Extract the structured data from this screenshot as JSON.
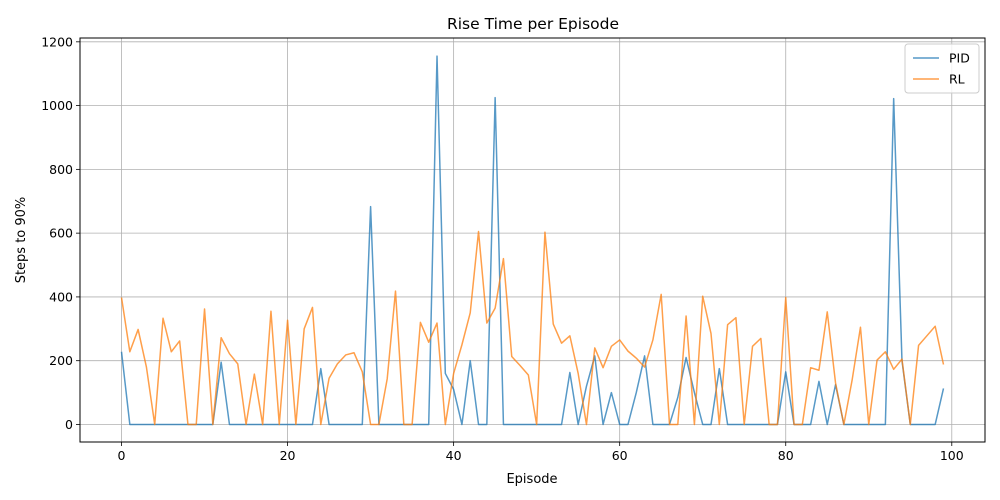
{
  "chart_data": {
    "type": "line",
    "title": "Rise Time per Episode",
    "xlabel": "Episode",
    "ylabel": "Steps to 90%",
    "xlim": [
      -5,
      104
    ],
    "ylim": [
      -55,
      1212
    ],
    "xticks": [
      0,
      20,
      40,
      60,
      80,
      100
    ],
    "yticks": [
      0,
      200,
      400,
      600,
      800,
      1000,
      1200
    ],
    "grid": true,
    "legend_position": "top-right",
    "series": [
      {
        "name": "PID",
        "color": "#1f77b4",
        "values": [
          228,
          0,
          0,
          0,
          0,
          0,
          0,
          0,
          0,
          0,
          0,
          0,
          195,
          0,
          0,
          0,
          0,
          0,
          0,
          0,
          0,
          0,
          0,
          0,
          175,
          0,
          0,
          0,
          0,
          0,
          683,
          0,
          0,
          0,
          0,
          0,
          0,
          0,
          1155,
          160,
          110,
          0,
          200,
          0,
          0,
          1025,
          0,
          0,
          0,
          0,
          0,
          0,
          0,
          0,
          163,
          0,
          120,
          215,
          0,
          100,
          0,
          0,
          100,
          215,
          0,
          0,
          0,
          85,
          210,
          100,
          0,
          0,
          175,
          0,
          0,
          0,
          0,
          0,
          0,
          0,
          165,
          0,
          0,
          0,
          135,
          0,
          125,
          0,
          0,
          0,
          0,
          0,
          0,
          1022,
          200,
          0,
          0,
          0,
          0,
          113
        ]
      },
      {
        "name": "RL",
        "color": "#ff7f0e",
        "values": [
          398,
          228,
          298,
          180,
          0,
          333,
          228,
          262,
          0,
          0,
          362,
          0,
          272,
          222,
          190,
          0,
          158,
          0,
          355,
          0,
          327,
          0,
          300,
          367,
          0,
          145,
          190,
          218,
          225,
          165,
          0,
          0,
          143,
          418,
          0,
          0,
          320,
          258,
          318,
          0,
          160,
          250,
          350,
          605,
          318,
          365,
          520,
          213,
          185,
          155,
          0,
          603,
          315,
          255,
          278,
          160,
          0,
          240,
          178,
          245,
          265,
          230,
          208,
          180,
          265,
          408,
          0,
          0,
          340,
          0,
          402,
          285,
          0,
          313,
          335,
          0,
          245,
          270,
          0,
          0,
          398,
          0,
          0,
          178,
          170,
          353,
          130,
          0,
          140,
          305,
          0,
          202,
          228,
          173,
          205,
          0,
          248,
          278,
          308,
          188
        ]
      }
    ]
  }
}
